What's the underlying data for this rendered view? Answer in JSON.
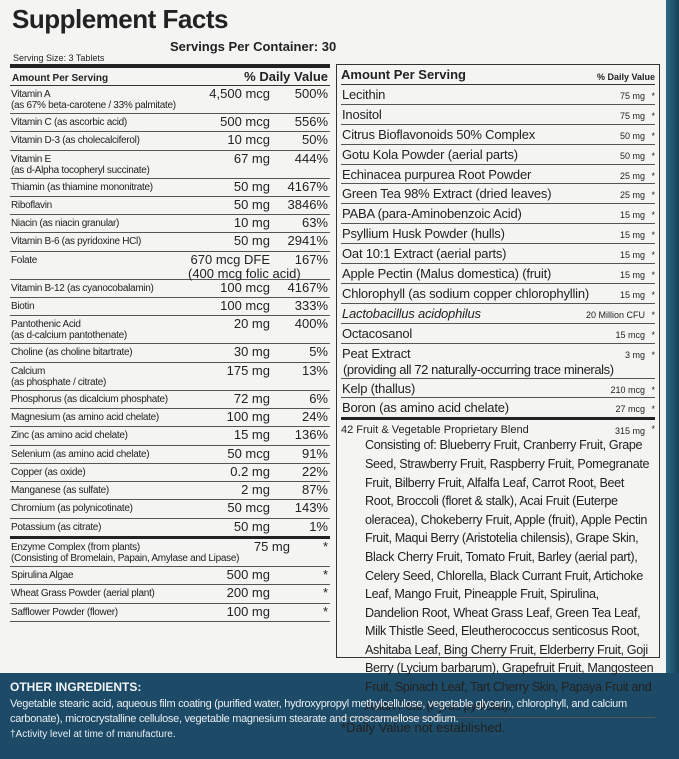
{
  "title": "Supplement Facts",
  "servings_per_container": "Servings Per Container: 30",
  "serving_size": "Serving Size: 3 Tablets",
  "left": {
    "header": {
      "amount": "Amount Per Serving",
      "dv": "% Daily Value"
    },
    "rows": [
      {
        "name": "Vitamin A",
        "note": "(as 67% beta-carotene / 33% palmitate)",
        "amount": "4,500 mcg",
        "dv": "500%"
      },
      {
        "name": "Vitamin C (as ascorbic acid)",
        "amount": "500 mcg",
        "dv": "556%"
      },
      {
        "name": "Vitamin D-3 (as cholecalciferol)",
        "amount": "10 mcg",
        "dv": "50%"
      },
      {
        "name": "Vitamin E",
        "note": "(as d-Alpha tocopheryl succinate)",
        "amount": "67 mg",
        "dv": "444%"
      },
      {
        "name": "Thiamin (as thiamine mononitrate)",
        "amount": "50 mg",
        "dv": "4167%"
      },
      {
        "name": "Riboflavin",
        "amount": "50 mg",
        "dv": "3846%"
      },
      {
        "name": "Niacin (as niacin granular)",
        "amount": "10 mg",
        "dv": "63%"
      },
      {
        "name": "Vitamin B-6 (as pyridoxine HCl)",
        "amount": "50 mg",
        "dv": "2941%"
      },
      {
        "name": "Folate",
        "amount": "670 mcg DFE",
        "dv": "167%",
        "note": "(400 mcg folic acid)"
      },
      {
        "name": "Vitamin B-12 (as cyanocobalamin)",
        "amount": "100 mcg",
        "dv": "4167%"
      },
      {
        "name": "Biotin",
        "amount": "100 mcg",
        "dv": "333%"
      },
      {
        "name": "Pantothenic Acid",
        "note": "(as d-calcium pantothenate)",
        "amount": "20 mg",
        "dv": "400%"
      },
      {
        "name": "Choline (as choline bitartrate)",
        "amount": "30 mg",
        "dv": "5%"
      },
      {
        "name": "Calcium",
        "note": "(as phosphate / citrate)",
        "amount": "175 mg",
        "dv": "13%"
      },
      {
        "name": "Phosphorus (as dicalcium phosphate)",
        "amount": "72 mg",
        "dv": "6%"
      },
      {
        "name": "Magnesium (as amino acid chelate)",
        "amount": "100 mg",
        "dv": "24%"
      },
      {
        "name": "Zinc (as amino acid chelate)",
        "amount": "15 mg",
        "dv": "136%"
      },
      {
        "name": "Selenium (as amino acid chelate)",
        "amount": "50 mcg",
        "dv": "91%"
      },
      {
        "name": "Copper (as oxide)",
        "amount": "0.2 mg",
        "dv": "22%"
      },
      {
        "name": "Manganese (as sulfate)",
        "amount": "2 mg",
        "dv": "87%"
      },
      {
        "name": "Chromium (as polynicotinate)",
        "amount": "50 mcg",
        "dv": "143%"
      },
      {
        "name": "Potassium (as citrate)",
        "amount": "50 mg",
        "dv": "1%"
      },
      {
        "name": "Enzyme Complex (from plants)",
        "amount": "75 mg",
        "dv": "*",
        "note": "(Consisting of Bromelain, Papain, Amylase and Lipase)"
      },
      {
        "name": "Spirulina Algae",
        "amount": "500 mg",
        "dv": "*"
      },
      {
        "name": "Wheat Grass Powder (aerial plant)",
        "amount": "200 mg",
        "dv": "*"
      },
      {
        "name": "Safflower Powder (flower)",
        "amount": "100 mg",
        "dv": "*"
      }
    ]
  },
  "right": {
    "header": {
      "amount": "Amount Per Serving",
      "dv": "% Daily Value"
    },
    "rows": [
      {
        "name": "Lecithin",
        "amount": "75 mg",
        "dv": "*"
      },
      {
        "name": "Inositol",
        "amount": "75 mg",
        "dv": "*"
      },
      {
        "name": "Citrus Bioflavonoids 50% Complex",
        "amount": "50 mg",
        "dv": "*"
      },
      {
        "name": "Gotu Kola Powder (aerial parts)",
        "amount": "50 mg",
        "dv": "*"
      },
      {
        "name": "Echinacea purpurea Root Powder",
        "amount": "25 mg",
        "dv": "*"
      },
      {
        "name": "Green Tea 98% Extract (dried leaves)",
        "amount": "25 mg",
        "dv": "*"
      },
      {
        "name": "PABA (para-Aminobenzoic Acid)",
        "amount": "15 mg",
        "dv": "*"
      },
      {
        "name": "Psyllium Husk Powder (hulls)",
        "amount": "15 mg",
        "dv": "*"
      },
      {
        "name": "Oat 10:1 Extract (aerial parts)",
        "amount": "15 mg",
        "dv": "*"
      },
      {
        "name": "Apple Pectin (Malus domestica) (fruit)",
        "amount": "15 mg",
        "dv": "*"
      },
      {
        "name": "Chlorophyll (as sodium copper chlorophyllin)",
        "amount": "15 mg",
        "dv": "*"
      },
      {
        "name": "Lactobacillus acidophilus",
        "amount": "20 Million CFU",
        "dv": "*"
      },
      {
        "name": "Octacosanol",
        "amount": "15 mcg",
        "dv": "*"
      },
      {
        "name": "Peat Extract",
        "amount": "3 mg",
        "dv": "*",
        "note": "(providing all 72 naturally-occurring trace minerals)"
      },
      {
        "name": "Kelp (thallus)",
        "amount": "210 mcg",
        "dv": "*"
      },
      {
        "name": "Boron (as amino acid chelate)",
        "amount": "27 mcg",
        "dv": "*"
      }
    ],
    "blend": {
      "name": "42 Fruit & Vegetable Proprietary Blend",
      "amount": "315 mg",
      "dv": "*",
      "consisting": "Consisting of: Blueberry Fruit, Cranberry Fruit, Grape Seed, Strawberry Fruit, Raspberry Fruit, Pomegranate Fruit, Bilberry Fruit, Alfalfa Leaf, Carrot Root, Beet Root, Broccoli (floret & stalk), Acai Fruit (Euterpe oleracea), Chokeberry Fruit, Apple (fruit), Apple Pectin Fruit, Maqui Berry (Aristotelia chilensis), Grape Skin, Black Cherry Fruit, Tomato Fruit, Barley (aerial part), Celery Seed, Chlorella, Black Currant Fruit, Artichoke Leaf, Mango Fruit, Pineapple Fruit, Spirulina, Dandelion Root, Wheat Grass Leaf, Green Tea Leaf, Milk Thistle Seed, Eleutherococcus senticosus Root, Ashitaba Leaf, Bing Cherry Fruit, Elderberry Fruit, Goji Berry (Lycium barbarum), Grapefruit Fruit, Mangosteen Fruit, Spinach Leaf, Tart Cherry Skin, Papaya Fruit and Asian Pear (Pyrus pyrifolia)."
    },
    "footnote": "*Daily Value not established."
  },
  "other_ingredients": {
    "title": "OTHER INGREDIENTS:",
    "text": "Vegetable stearic acid, aqueous film coating (purified water, hydroxypropyl methylcellulose, vegetable glycerin, chlorophyll, and calcium carbonate), microcrystalline cellulose, vegetable magnesium stearate and croscarmellose sodium.",
    "note": "†Activity level at time of manufacture."
  }
}
